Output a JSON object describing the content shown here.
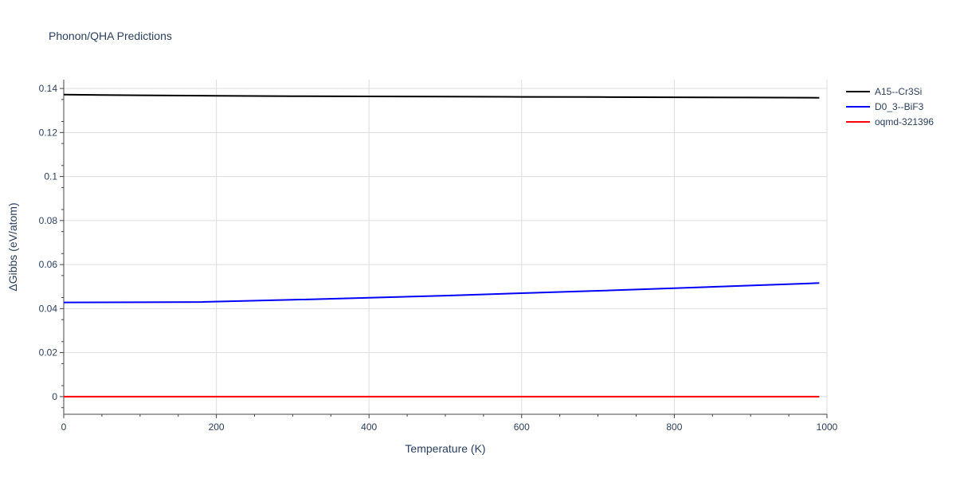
{
  "chart_data": {
    "type": "line",
    "title": "Phonon/QHA Predictions",
    "xlabel": "Temperature (K)",
    "ylabel": "ΔGibbs (eV/atom)",
    "xlim": [
      0,
      1000
    ],
    "ylim": [
      -0.008,
      0.144
    ],
    "x_ticks": [
      0,
      200,
      400,
      600,
      800,
      1000
    ],
    "x_tick_labels": [
      "0",
      "200",
      "400",
      "600",
      "800",
      "1000"
    ],
    "y_ticks": [
      0,
      0.02,
      0.04,
      0.06,
      0.08,
      0.1,
      0.12,
      0.14
    ],
    "y_tick_labels": [
      "0",
      "0.02",
      "0.04",
      "0.06",
      "0.08",
      "0.1",
      "0.12",
      "0.14"
    ],
    "grid": true,
    "legend_position": "top-right",
    "series": [
      {
        "name": "A15--Cr3Si",
        "color": "#000000",
        "x": [
          0,
          100,
          200,
          300,
          400,
          500,
          600,
          700,
          800,
          900,
          990
        ],
        "y": [
          0.1372,
          0.1369,
          0.1367,
          0.1365,
          0.1364,
          0.1363,
          0.1362,
          0.1361,
          0.136,
          0.1359,
          0.1358
        ]
      },
      {
        "name": "D0_3--BiF3",
        "color": "#0000ff",
        "x": [
          0,
          100,
          180,
          300,
          400,
          500,
          600,
          700,
          800,
          900,
          990
        ],
        "y": [
          0.0428,
          0.0429,
          0.043,
          0.044,
          0.0449,
          0.0459,
          0.047,
          0.0481,
          0.0493,
          0.0505,
          0.0516
        ]
      },
      {
        "name": "oqmd-321396",
        "color": "#ff0000",
        "x": [
          0,
          990
        ],
        "y": [
          0,
          0
        ]
      }
    ]
  }
}
